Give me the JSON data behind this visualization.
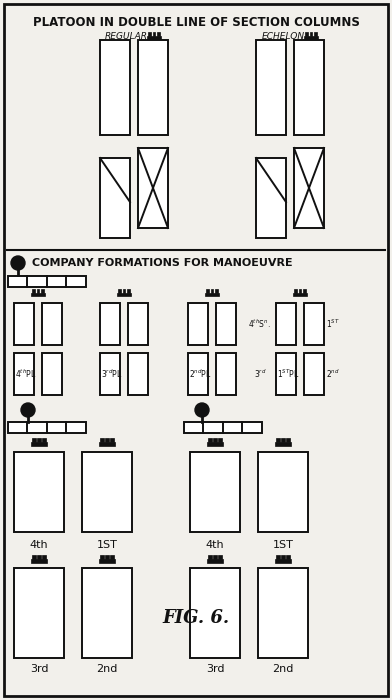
{
  "title1": "PLATOON IN DOUBLE LINE OF SECTION COLUMNS",
  "title2": "COMPANY FORMATIONS FOR MANOEUVRE",
  "fig_label": "FIG. 6.",
  "bg_color": "#f2f0eb",
  "line_color": "#111111",
  "fig_width": 3.92,
  "fig_height": 7.0
}
